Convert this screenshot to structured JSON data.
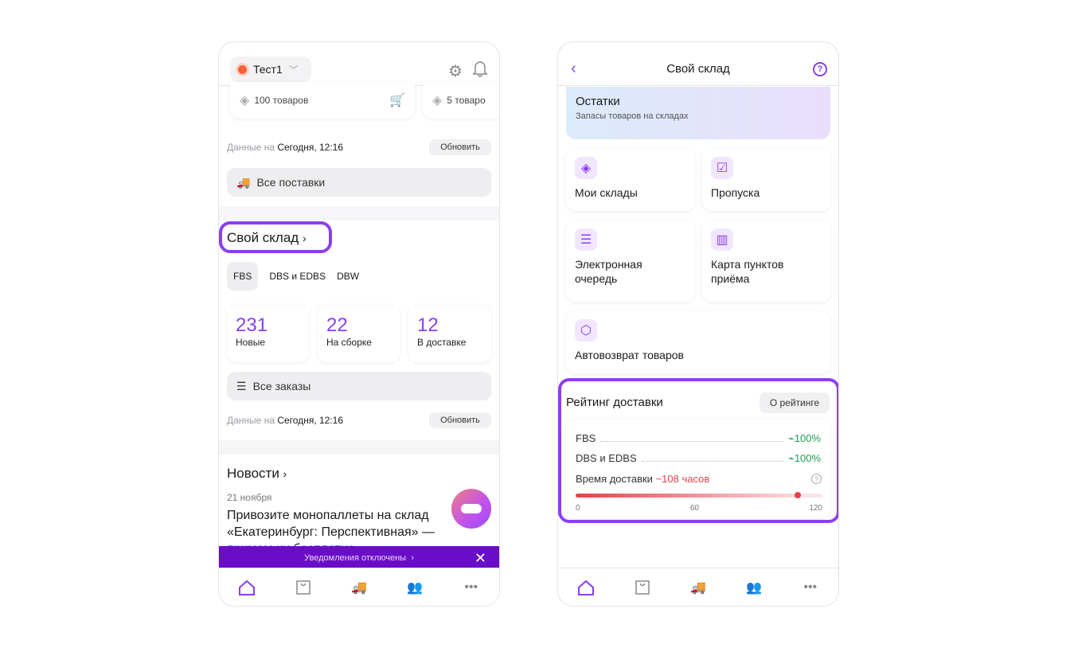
{
  "left": {
    "store": "Тест1",
    "stock_cards": [
      "100 товаров",
      "5 товаро"
    ],
    "data_label": "Данные на",
    "data_time": "Сегодня, 12:16",
    "refresh": "Обновить",
    "all_supplies": "Все поставки",
    "warehouse_title": "Свой склад",
    "tabs": [
      "FBS",
      "DBS и EDBS",
      "DBW"
    ],
    "stats": [
      {
        "value": "231",
        "label": "Новые"
      },
      {
        "value": "22",
        "label": "На сборке"
      },
      {
        "value": "12",
        "label": "В доставке"
      }
    ],
    "all_orders": "Все заказы",
    "news_title": "Новости",
    "news_date": "21 ноября",
    "news_text": "Привозите монопаллеты на склад «Екатеринбург: Перспективная» — примем их бесплатно",
    "banner": "Уведомления отключены"
  },
  "right": {
    "title": "Свой склад",
    "remains_title": "Остатки",
    "remains_sub": "Запасы товаров на складах",
    "tiles": [
      "Мои склады",
      "Пропуска",
      "Электронная очередь",
      "Карта пунктов приёма",
      "Автовозврат товаров"
    ],
    "rating_title": "Рейтинг доставки",
    "about": "О рейтинге",
    "rows": [
      {
        "label": "FBS",
        "value": "100%"
      },
      {
        "label": "DBS и EDBS",
        "value": "100%"
      }
    ],
    "time_label": "Время доставки",
    "time_value": "~108 часов",
    "scale": [
      "0",
      "60",
      "120"
    ],
    "time_hours": 108,
    "scale_max": 120
  },
  "colors": {
    "accent": "#8b3ff0",
    "banner": "#6a0dc8",
    "green": "#1f9d55",
    "red": "#e8404a"
  }
}
